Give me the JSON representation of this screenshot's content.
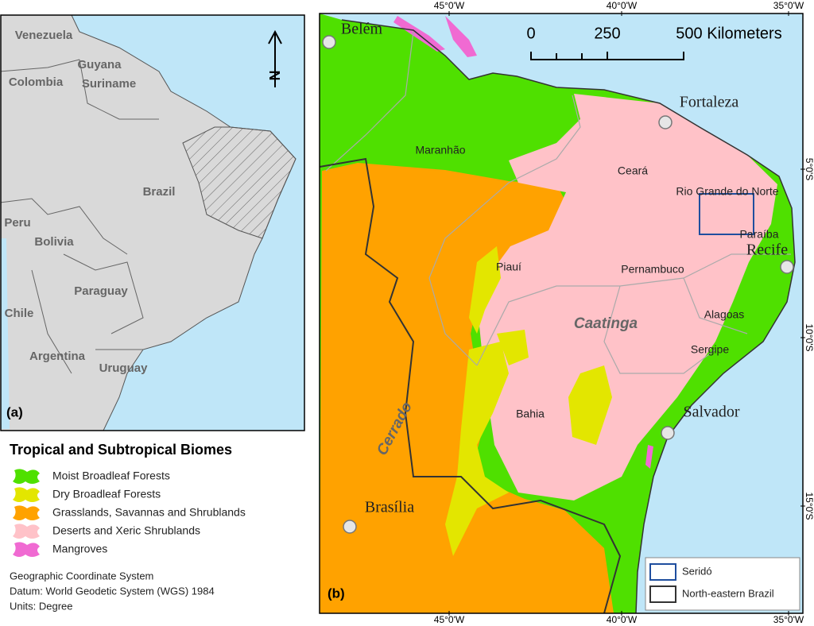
{
  "panel_a": {
    "label": "(a)",
    "north_arrow": "N",
    "countries": [
      "Venezuela",
      "Guyana",
      "Suriname",
      "Colombia",
      "Brazil",
      "Peru",
      "Bolivia",
      "Paraguay",
      "Chile",
      "Argentina",
      "Uruguay"
    ]
  },
  "legend": {
    "title": "Tropical and Subtropical Biomes",
    "items": [
      {
        "label": "Moist Broadleaf Forests",
        "color": "#4fe000"
      },
      {
        "label": "Dry Broadleaf Forests",
        "color": "#e3e600"
      },
      {
        "label": "Grasslands, Savannas and Shrublands",
        "color": "#ffa200"
      },
      {
        "label": "Deserts and Xeric Shrublands",
        "color": "#ffc2c8"
      },
      {
        "label": "Mangroves",
        "color": "#f06ad2"
      }
    ]
  },
  "coordinate_system": [
    "Geographic Coordinate System",
    "Datum: World Geodetic System (WGS) 1984",
    "Units: Degree"
  ],
  "panel_b": {
    "label": "(b)",
    "cities": [
      "Belém",
      "Fortaleza",
      "Recife",
      "Salvador",
      "Brasília"
    ],
    "states": [
      "Maranhão",
      "Ceará",
      "Rio Grande do Norte",
      "Paraíba",
      "Piauí",
      "Pernambuco",
      "Alagoas",
      "Sergipe",
      "Bahia"
    ],
    "biome_labels": [
      "Caatinga",
      "Cerrado"
    ],
    "scale_bar": [
      "0",
      "250",
      "500 Kilometers"
    ],
    "longitude_ticks": [
      "45°0'W",
      "40°0'W",
      "35°0'W"
    ],
    "latitude_ticks": [
      "5°0'S",
      "10°0'S",
      "15°0'S"
    ],
    "inset_legend": [
      {
        "label": "Seridó",
        "color": "#1f4e9e"
      },
      {
        "label": "North-eastern Brazil",
        "color": "#333333"
      }
    ]
  }
}
